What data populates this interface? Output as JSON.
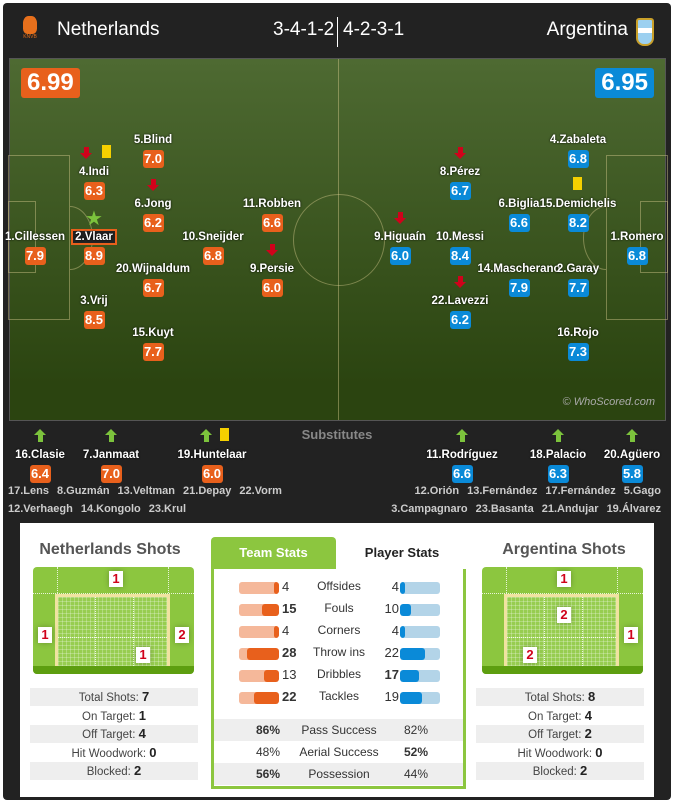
{
  "header": {
    "home": "Netherlands",
    "away": "Argentina",
    "home_formation": "3-4-1-2",
    "away_formation": "4-2-3-1",
    "home_crest": "KNVB",
    "home_rating": "6.99",
    "away_rating": "6.95"
  },
  "colors": {
    "home": "#e8601c",
    "away": "#0a8ad8",
    "accent": "#8cc63f"
  },
  "watermark": "© WhoScored.com",
  "home_players": [
    {
      "name": "1.Cillessen",
      "rating": "7.9",
      "events": []
    },
    {
      "name": "2.Vlaar",
      "rating": "8.9",
      "events": [
        "man-of-the-match-star"
      ]
    },
    {
      "name": "4.Indi",
      "rating": "6.3",
      "events": [
        "sub-off-arrow",
        "yellow-card"
      ]
    },
    {
      "name": "3.Vrij",
      "rating": "8.5",
      "events": []
    },
    {
      "name": "5.Blind",
      "rating": "7.0",
      "events": []
    },
    {
      "name": "6.Jong",
      "rating": "6.2",
      "events": [
        "sub-off-arrow"
      ]
    },
    {
      "name": "20.Wijnaldum",
      "rating": "6.7",
      "events": []
    },
    {
      "name": "15.Kuyt",
      "rating": "7.7",
      "events": []
    },
    {
      "name": "10.Sneijder",
      "rating": "6.8",
      "events": []
    },
    {
      "name": "11.Robben",
      "rating": "6.6",
      "events": []
    },
    {
      "name": "9.Persie",
      "rating": "6.0",
      "events": [
        "sub-off-arrow"
      ]
    }
  ],
  "away_players": [
    {
      "name": "9.Higuaín",
      "rating": "6.0",
      "events": [
        "sub-off-arrow"
      ]
    },
    {
      "name": "8.Pérez",
      "rating": "6.7",
      "events": [
        "sub-off-arrow"
      ]
    },
    {
      "name": "10.Messi",
      "rating": "8.4",
      "events": []
    },
    {
      "name": "22.Lavezzi",
      "rating": "6.2",
      "events": [
        "sub-off-arrow"
      ]
    },
    {
      "name": "6.Biglia",
      "rating": "6.6",
      "events": []
    },
    {
      "name": "14.Mascherano",
      "rating": "7.9",
      "events": []
    },
    {
      "name": "4.Zabaleta",
      "rating": "6.8",
      "events": []
    },
    {
      "name": "15.Demichelis",
      "rating": "8.2",
      "events": [
        "yellow-card"
      ]
    },
    {
      "name": "2.Garay",
      "rating": "7.7",
      "events": []
    },
    {
      "name": "16.Rojo",
      "rating": "7.3",
      "events": []
    },
    {
      "name": "1.Romero",
      "rating": "6.8",
      "events": []
    }
  ],
  "substitutes": {
    "title": "Substitutes",
    "home": [
      {
        "name": "16.Clasie",
        "rating": "6.4",
        "events": [
          "sub-on-arrow"
        ]
      },
      {
        "name": "7.Janmaat",
        "rating": "7.0",
        "events": [
          "sub-on-arrow"
        ]
      },
      {
        "name": "19.Huntelaar",
        "rating": "6.0",
        "events": [
          "sub-on-arrow",
          "yellow-card"
        ]
      }
    ],
    "away": [
      {
        "name": "11.Rodríguez",
        "rating": "6.6",
        "events": [
          "sub-on-arrow"
        ]
      },
      {
        "name": "18.Palacio",
        "rating": "6.3",
        "events": [
          "sub-on-arrow"
        ]
      },
      {
        "name": "20.Agüero",
        "rating": "5.8",
        "events": [
          "sub-on-arrow"
        ]
      }
    ],
    "home_bench": [
      [
        "17.Lens",
        "8.Guzmán",
        "13.Veltman",
        "21.Depay",
        "22.Vorm"
      ],
      [
        "12.Verhaegh",
        "14.Kongolo",
        "23.Krul"
      ]
    ],
    "away_bench": [
      [
        "12.Orión",
        "13.Fernández",
        "17.Fernández",
        "5.Gago"
      ],
      [
        "3.Campagnaro",
        "23.Basanta",
        "21.Andujar",
        "19.Álvarez"
      ]
    ]
  },
  "home_shots": {
    "title": "Netherlands Shots",
    "zones": {
      "over": "1",
      "left": "1",
      "right": "2",
      "low_right": "1"
    },
    "rows": [
      {
        "label": "Total Shots:",
        "value": "7"
      },
      {
        "label": "On Target:",
        "value": "1"
      },
      {
        "label": "Off Target:",
        "value": "4"
      },
      {
        "label": "Hit Woodwork:",
        "value": "0"
      },
      {
        "label": "Blocked:",
        "value": "2"
      }
    ]
  },
  "away_shots": {
    "title": "Argentina Shots",
    "zones": {
      "over": "1",
      "mid_center": "2",
      "right": "1",
      "low_left": "2"
    },
    "rows": [
      {
        "label": "Total Shots:",
        "value": "8"
      },
      {
        "label": "On Target:",
        "value": "4"
      },
      {
        "label": "Off Target:",
        "value": "2"
      },
      {
        "label": "Hit Woodwork:",
        "value": "0"
      },
      {
        "label": "Blocked:",
        "value": "2"
      }
    ]
  },
  "tabs": {
    "team": "Team Stats",
    "player": "Player Stats",
    "active": "team"
  },
  "team_stats": [
    {
      "label": "Offsides",
      "home": 4,
      "away": 4
    },
    {
      "label": "Fouls",
      "home": 15,
      "away": 10
    },
    {
      "label": "Corners",
      "home": 4,
      "away": 4
    },
    {
      "label": "Throw ins",
      "home": 28,
      "away": 22
    },
    {
      "label": "Dribbles",
      "home": 13,
      "away": 17
    },
    {
      "label": "Tackles",
      "home": 22,
      "away": 19
    }
  ],
  "percent_stats": [
    {
      "label": "Pass Success",
      "home": "86%",
      "away": "82%"
    },
    {
      "label": "Aerial Success",
      "home": "48%",
      "away": "52%"
    },
    {
      "label": "Possession",
      "home": "56%",
      "away": "44%"
    }
  ]
}
